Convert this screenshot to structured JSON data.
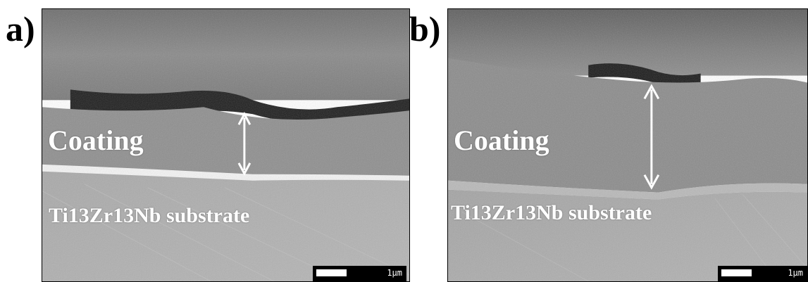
{
  "panels": [
    {
      "label": "a)",
      "coating": "Coating",
      "substrate": "Ti13Zr13Nb substrate",
      "scale_bar": "1µm"
    },
    {
      "label": "b)",
      "coating": "Coating",
      "substrate": "Ti13Zr13Nb substrate",
      "scale_bar": "1µm"
    }
  ],
  "colors": {
    "text_overlay": "#ffffff",
    "scale_bar_bg": "#000000",
    "label": "#000000"
  }
}
